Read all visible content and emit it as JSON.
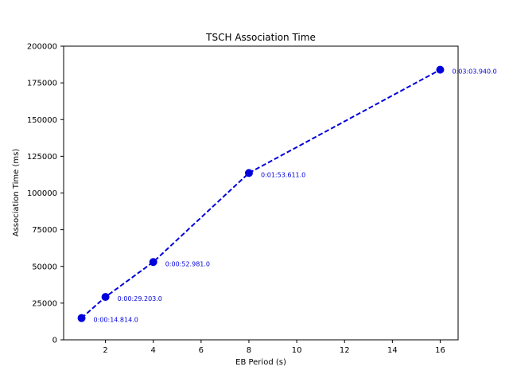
{
  "chart_data": {
    "type": "line",
    "title": "TSCH Association Time",
    "xlabel": "EB Period (s)",
    "ylabel": "Association Time (ms)",
    "xlim": [
      0.25,
      16.75
    ],
    "ylim": [
      0,
      200000
    ],
    "xticks": [
      2,
      4,
      6,
      8,
      10,
      12,
      14,
      16
    ],
    "yticks": [
      0,
      25000,
      50000,
      75000,
      100000,
      125000,
      150000,
      175000,
      200000
    ],
    "grid": false,
    "line_style": "dashed",
    "marker": "circle",
    "color": "#0000dd",
    "series": [
      {
        "x": [
          1,
          2,
          4,
          8,
          16
        ],
        "y": [
          14814,
          29203,
          52981,
          113611,
          183940
        ]
      }
    ],
    "annotations": [
      {
        "x": 1,
        "y": 14814,
        "text": "0:00:14.814.0"
      },
      {
        "x": 2,
        "y": 29203,
        "text": "0:00:29.203.0"
      },
      {
        "x": 4,
        "y": 52981,
        "text": "0:00:52.981.0"
      },
      {
        "x": 8,
        "y": 113611,
        "text": "0:01:53.611.0"
      },
      {
        "x": 16,
        "y": 183940,
        "text": "0:03:03.940.0"
      }
    ]
  }
}
